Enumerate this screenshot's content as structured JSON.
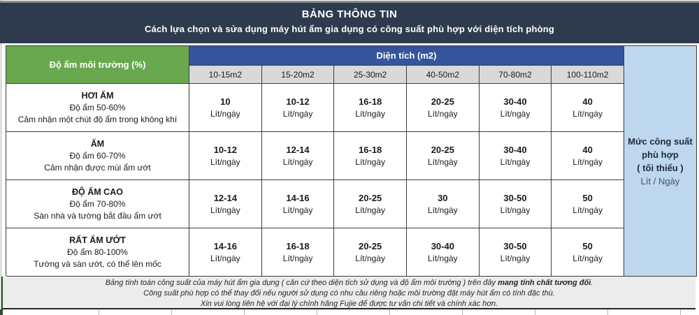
{
  "title": {
    "line1": "BẢNG THÔNG TIN",
    "line2": "Cách lựa chọn và sửa dụng máy hút ẩm gia dụng có công suất phù hợp với diện tích phòng"
  },
  "table": {
    "humidity_header": "Độ ẩm môi trường (%)",
    "area_header": "Diện tích (m2)",
    "area_columns": [
      "10-15m2",
      "15-20m2",
      "25-30m2",
      "40-50m2",
      "70-80m2",
      "100-110m2"
    ],
    "unit": "Lít/ngày",
    "capacity_note": {
      "line1": "Mức công suất phù hợp",
      "line2": "( tối thiểu )",
      "line3": "Lít / Ngày"
    },
    "rows": [
      {
        "name": "HƠI ẨM",
        "range": "Độ ẩm 50-60%",
        "desc": "Cảm nhận một chút độ ẩm trong không khí",
        "values": [
          "10",
          "10-12",
          "16-18",
          "20-25",
          "30-40",
          "40"
        ]
      },
      {
        "name": "ẨM",
        "range": "Độ ẩm 60-70%",
        "desc": "Cảm nhận được mùi ẩm ướt",
        "values": [
          "10-12",
          "12-14",
          "16-18",
          "20-25",
          "30-40",
          "40"
        ]
      },
      {
        "name": "ĐỘ ẨM CAO",
        "range": "Độ ẩm 70-80%",
        "desc": "Sàn nhà và tường bắt đầu ẩm ướt",
        "values": [
          "12-14",
          "14-16",
          "20-25",
          "30",
          "30-50",
          "50"
        ]
      },
      {
        "name": "RẤT ẨM ƯỚT",
        "range": "Độ ẩm 80-100%",
        "desc": "Tường và sàn ướt, có thể lên mốc",
        "values": [
          "14-16",
          "16-18",
          "20-25",
          "30-40",
          "30-50",
          "50"
        ]
      }
    ]
  },
  "footer": {
    "line1_normal": "Bảng tính toán công suất của máy hút ẩm gia dụng ( căn cứ theo diện tích sử dụng và độ ẩm môi trường ) trên đây ",
    "line1_bold": "mang tính chất tương đối",
    "line1_end": ".",
    "line2": "Công suất phù hợp có thể thay đổi nếu người sử dụng có nhu cầu riêng hoặc môi trường đặt máy hút ẩm có tính đặc thù.",
    "line3": "Xin vui lòng liên hệ với đại lý chính hãng Fujie để được tư vấn chi tiết và chính xác hơn."
  },
  "colors": {
    "title_bg": "#2e3b4f",
    "humidity_header_bg": "#6aa84f",
    "area_header_bg": "#35549b",
    "column_header_bg": "#d9d9d9",
    "capacity_column_bg": "#bdd7ee",
    "footer_bg": "#ececec",
    "footer_accent": "#2e5a1e"
  }
}
